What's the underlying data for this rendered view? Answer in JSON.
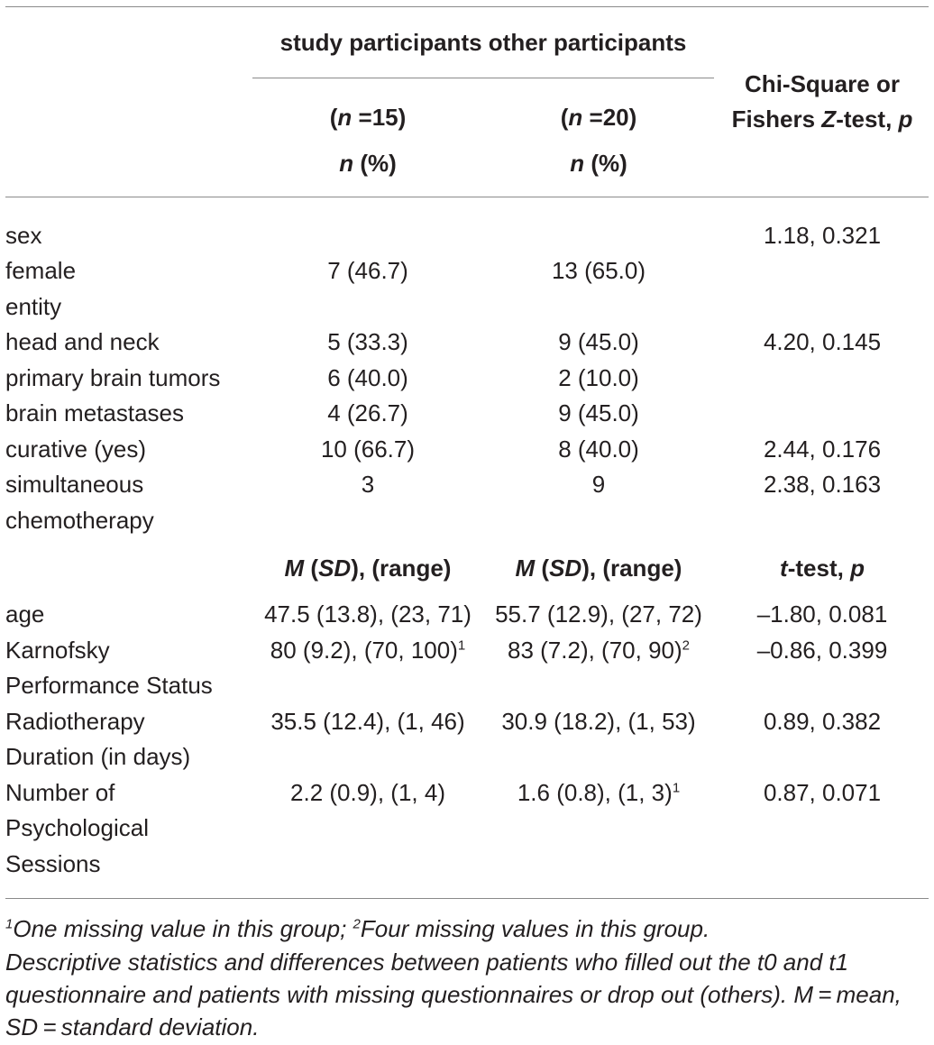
{
  "header": {
    "group_span": "study participants other participants",
    "study_n": [
      "(",
      "n",
      " =15)"
    ],
    "other_n": [
      "(",
      "n",
      " =20)"
    ],
    "study_unit": [
      "n",
      " (%)"
    ],
    "other_unit": [
      "n",
      " (%)"
    ],
    "test_line1": "Chi-Square or",
    "test_line2": [
      "Fishers ",
      "Z",
      "-test, ",
      "p"
    ]
  },
  "categorical_rows": [
    {
      "label": "sex",
      "study": "",
      "other": "",
      "test": "1.18, 0.321"
    },
    {
      "label": "female",
      "study": "7 (46.7)",
      "other": "13 (65.0)",
      "test": ""
    },
    {
      "label": "entity",
      "study": "",
      "other": "",
      "test": ""
    },
    {
      "label": "head and neck",
      "study": "5 (33.3)",
      "other": "9 (45.0)",
      "test": "4.20, 0.145"
    },
    {
      "label": "primary brain tumors",
      "study": "6 (40.0)",
      "other": "2 (10.0)",
      "test": ""
    },
    {
      "label": "brain metastases",
      "study": "4 (26.7)",
      "other": "9 (45.0)",
      "test": ""
    },
    {
      "label": "curative (yes)",
      "study": "10 (66.7)",
      "other": "8 (40.0)",
      "test": "2.44, 0.176"
    },
    {
      "label": "simultaneous",
      "label2": "chemotherapy",
      "study": "3",
      "other": "9",
      "test": "2.38, 0.163"
    }
  ],
  "subheader": {
    "study": [
      "M",
      " (",
      "SD",
      "), (range)"
    ],
    "other": [
      "M",
      " (",
      "SD",
      "), (range)"
    ],
    "test": [
      "t",
      "-test, ",
      "p"
    ]
  },
  "continuous_rows": [
    {
      "label": "age",
      "study": "47.5 (13.8), (23, 71)",
      "other": "55.7 (12.9), (27, 72)",
      "test": "–1.80, 0.081"
    },
    {
      "label": "Karnofsky",
      "label2": "Performance Status",
      "study": "80 (9.2), (70, 100)",
      "study_sup": "1",
      "other": "83 (7.2), (70, 90)",
      "other_sup": "2",
      "test": "–0.86, 0.399"
    },
    {
      "label": "Radiotherapy",
      "label2": "Duration (in days)",
      "study": "35.5 (12.4), (1, 46)",
      "other": "30.9 (18.2), (1, 53)",
      "test": "0.89, 0.382"
    },
    {
      "label": "Number of",
      "label2": "Psychological",
      "label3": "Sessions",
      "study": "2.2 (0.9), (1, 4)",
      "other": "1.6 (0.8), (1, 3)",
      "other_sup": "1",
      "test": "0.87, 0.071"
    }
  ],
  "footnotes": {
    "note1_sup": "1",
    "note1_text": "One missing value in this group; ",
    "note2_sup": "2",
    "note2_text": "Four missing values in this group.",
    "caption_line1": "Descriptive statistics and differences between patients who filled out the t0 and t1",
    "caption_line2": "questionnaire and patients with missing questionnaires or drop out (others). M = mean,",
    "caption_line3": "SD = standard deviation."
  }
}
